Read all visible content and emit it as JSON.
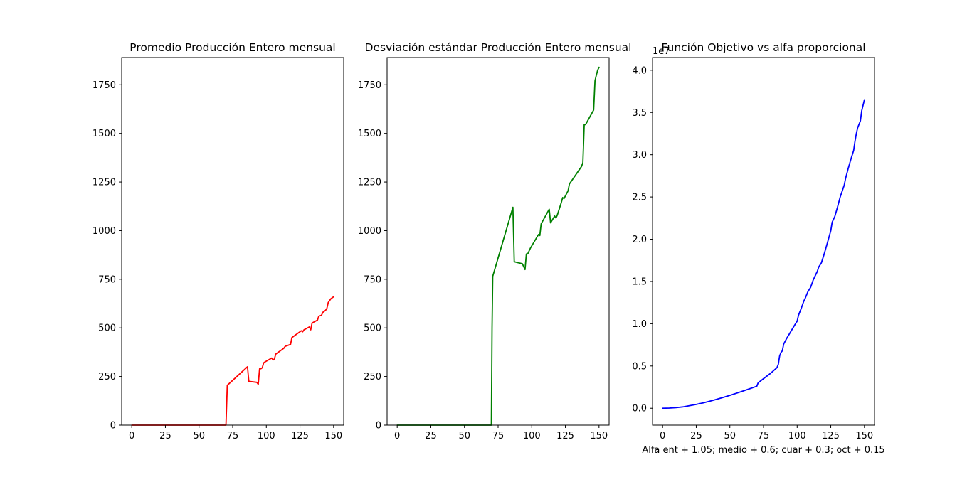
{
  "chart_data": [
    {
      "type": "line",
      "title": "Promedio Producción Entero mensual",
      "xlabel": "",
      "ylabel": "",
      "offset_text": "",
      "xlim": [
        -7.5,
        157.5
      ],
      "ylim": [
        0,
        1890
      ],
      "xticks": [
        0,
        25,
        50,
        75,
        100,
        125,
        150
      ],
      "yticks": [
        0,
        250,
        500,
        750,
        1000,
        1250,
        1500,
        1750
      ],
      "grid": false,
      "series": [
        {
          "color": "#ff0000",
          "x": [
            0,
            70,
            71,
            86,
            87,
            93,
            94,
            95,
            96,
            97,
            98,
            99,
            104,
            105,
            106,
            107,
            113,
            114,
            118,
            119,
            126,
            127,
            128,
            132,
            133,
            134,
            138,
            139,
            141,
            142,
            144,
            145,
            146,
            148,
            150
          ],
          "y": [
            0,
            0,
            205,
            300,
            225,
            220,
            210,
            290,
            290,
            295,
            320,
            325,
            345,
            335,
            340,
            365,
            395,
            405,
            415,
            450,
            485,
            480,
            490,
            505,
            490,
            525,
            540,
            560,
            565,
            580,
            590,
            600,
            630,
            650,
            660
          ]
        }
      ]
    },
    {
      "type": "line",
      "title": "Desviación estándar Producción Entero mensual",
      "xlabel": "",
      "ylabel": "",
      "offset_text": "",
      "xlim": [
        -7.5,
        157.5
      ],
      "ylim": [
        0,
        1890
      ],
      "xticks": [
        0,
        25,
        50,
        75,
        100,
        125,
        150
      ],
      "yticks": [
        0,
        250,
        500,
        750,
        1000,
        1250,
        1500,
        1750
      ],
      "grid": false,
      "series": [
        {
          "color": "#008000",
          "x": [
            0,
            70,
            70.5,
            71,
            86,
            87,
            93,
            94,
            95,
            96,
            97,
            98,
            99,
            105,
            106,
            107,
            113,
            114,
            117,
            118,
            119,
            122,
            123,
            124,
            127,
            128,
            129,
            137,
            138,
            139,
            140,
            146,
            147,
            148,
            149,
            150
          ],
          "y": [
            0,
            0,
            500,
            765,
            1120,
            840,
            830,
            815,
            800,
            880,
            880,
            895,
            910,
            980,
            975,
            1035,
            1110,
            1040,
            1075,
            1065,
            1080,
            1145,
            1170,
            1165,
            1205,
            1240,
            1250,
            1330,
            1350,
            1545,
            1545,
            1620,
            1770,
            1800,
            1825,
            1840
          ]
        }
      ]
    },
    {
      "type": "line",
      "title": "Función Objetivo vs alfa proporcional",
      "xlabel": "Alfa ent + 1.05; medio + 0.6; cuar + 0.3; oct + 0.15",
      "ylabel": "",
      "offset_text": "1e7",
      "xlim": [
        -7.5,
        157.5
      ],
      "ylim": [
        -0.2,
        4.15
      ],
      "xticks": [
        0,
        25,
        50,
        75,
        100,
        125,
        150
      ],
      "yticks": [
        0.0,
        0.5,
        1.0,
        1.5,
        2.0,
        2.5,
        3.0,
        3.5,
        4.0
      ],
      "ytick_labels": [
        "0.0",
        "0.5",
        "1.0",
        "1.5",
        "2.0",
        "2.5",
        "3.0",
        "3.5",
        "4.0"
      ],
      "grid": false,
      "series": [
        {
          "color": "#0000ff",
          "x": [
            0,
            5,
            10,
            15,
            20,
            25,
            30,
            35,
            40,
            45,
            50,
            55,
            60,
            65,
            70,
            71,
            75,
            80,
            85,
            86,
            87,
            88,
            89,
            90,
            92,
            95,
            98,
            100,
            101,
            103,
            105,
            106,
            108,
            110,
            112,
            115,
            116,
            118,
            120,
            122,
            125,
            126,
            128,
            130,
            132,
            135,
            136,
            137,
            138,
            140,
            142,
            143,
            144,
            145,
            147,
            148,
            150
          ],
          "y": [
            0.0,
            0.002,
            0.007,
            0.016,
            0.03,
            0.045,
            0.063,
            0.083,
            0.105,
            0.128,
            0.152,
            0.178,
            0.205,
            0.232,
            0.26,
            0.3,
            0.35,
            0.41,
            0.48,
            0.52,
            0.62,
            0.66,
            0.68,
            0.76,
            0.82,
            0.9,
            0.98,
            1.03,
            1.1,
            1.18,
            1.27,
            1.3,
            1.38,
            1.43,
            1.52,
            1.62,
            1.67,
            1.72,
            1.82,
            1.93,
            2.1,
            2.2,
            2.27,
            2.38,
            2.5,
            2.64,
            2.72,
            2.78,
            2.84,
            2.95,
            3.05,
            3.16,
            3.25,
            3.32,
            3.4,
            3.52,
            3.65
          ]
        }
      ]
    }
  ]
}
